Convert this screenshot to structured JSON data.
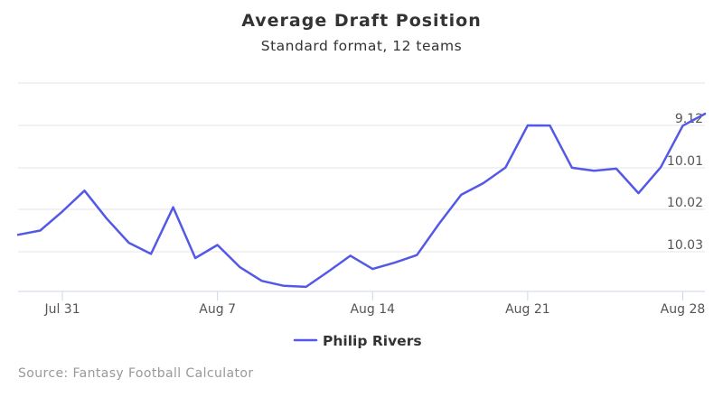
{
  "chart_data": {
    "type": "line",
    "title": "Average Draft Position",
    "subtitle": "Standard format, 12 teams",
    "xlabel": "",
    "ylabel": "",
    "x_tick_labels": [
      "Jul 31",
      "Aug 7",
      "Aug 14",
      "Aug 21",
      "Aug 28"
    ],
    "x_tick_days": [
      2,
      9,
      16,
      23,
      30
    ],
    "y_tick_labels": [
      "9.12",
      "10.01",
      "10.02",
      "10.03"
    ],
    "y_tick_values": [
      9.12,
      10.01,
      10.02,
      10.03
    ],
    "grid": true,
    "legend_position": "bottom-center",
    "series": [
      {
        "name": "Philip Rivers",
        "color": "#5359e6",
        "x_days": [
          0,
          1,
          2,
          3,
          4,
          5,
          6,
          7,
          8,
          9,
          10,
          11,
          12,
          13,
          14,
          15,
          16,
          17,
          18,
          19,
          20,
          21,
          22,
          23,
          24,
          25,
          26,
          27,
          28,
          29,
          30,
          31
        ],
        "values": [
          10.026,
          10.025,
          10.0205,
          10.0155,
          10.0222,
          10.0279,
          10.0311,
          10.0195,
          10.0332,
          10.0284,
          10.0377,
          10.0447,
          10.0472,
          10.0477,
          10.04,
          10.032,
          10.0387,
          10.0355,
          10.0317,
          10.0234,
          10.0165,
          10.0137,
          10.0015,
          9.12,
          9.1225,
          10.0087,
          10.0107,
          10.0102,
          10.0161,
          10.0018,
          9.125,
          9.1145
        ]
      }
    ],
    "credit": "Source: Fantasy Football Calculator"
  }
}
